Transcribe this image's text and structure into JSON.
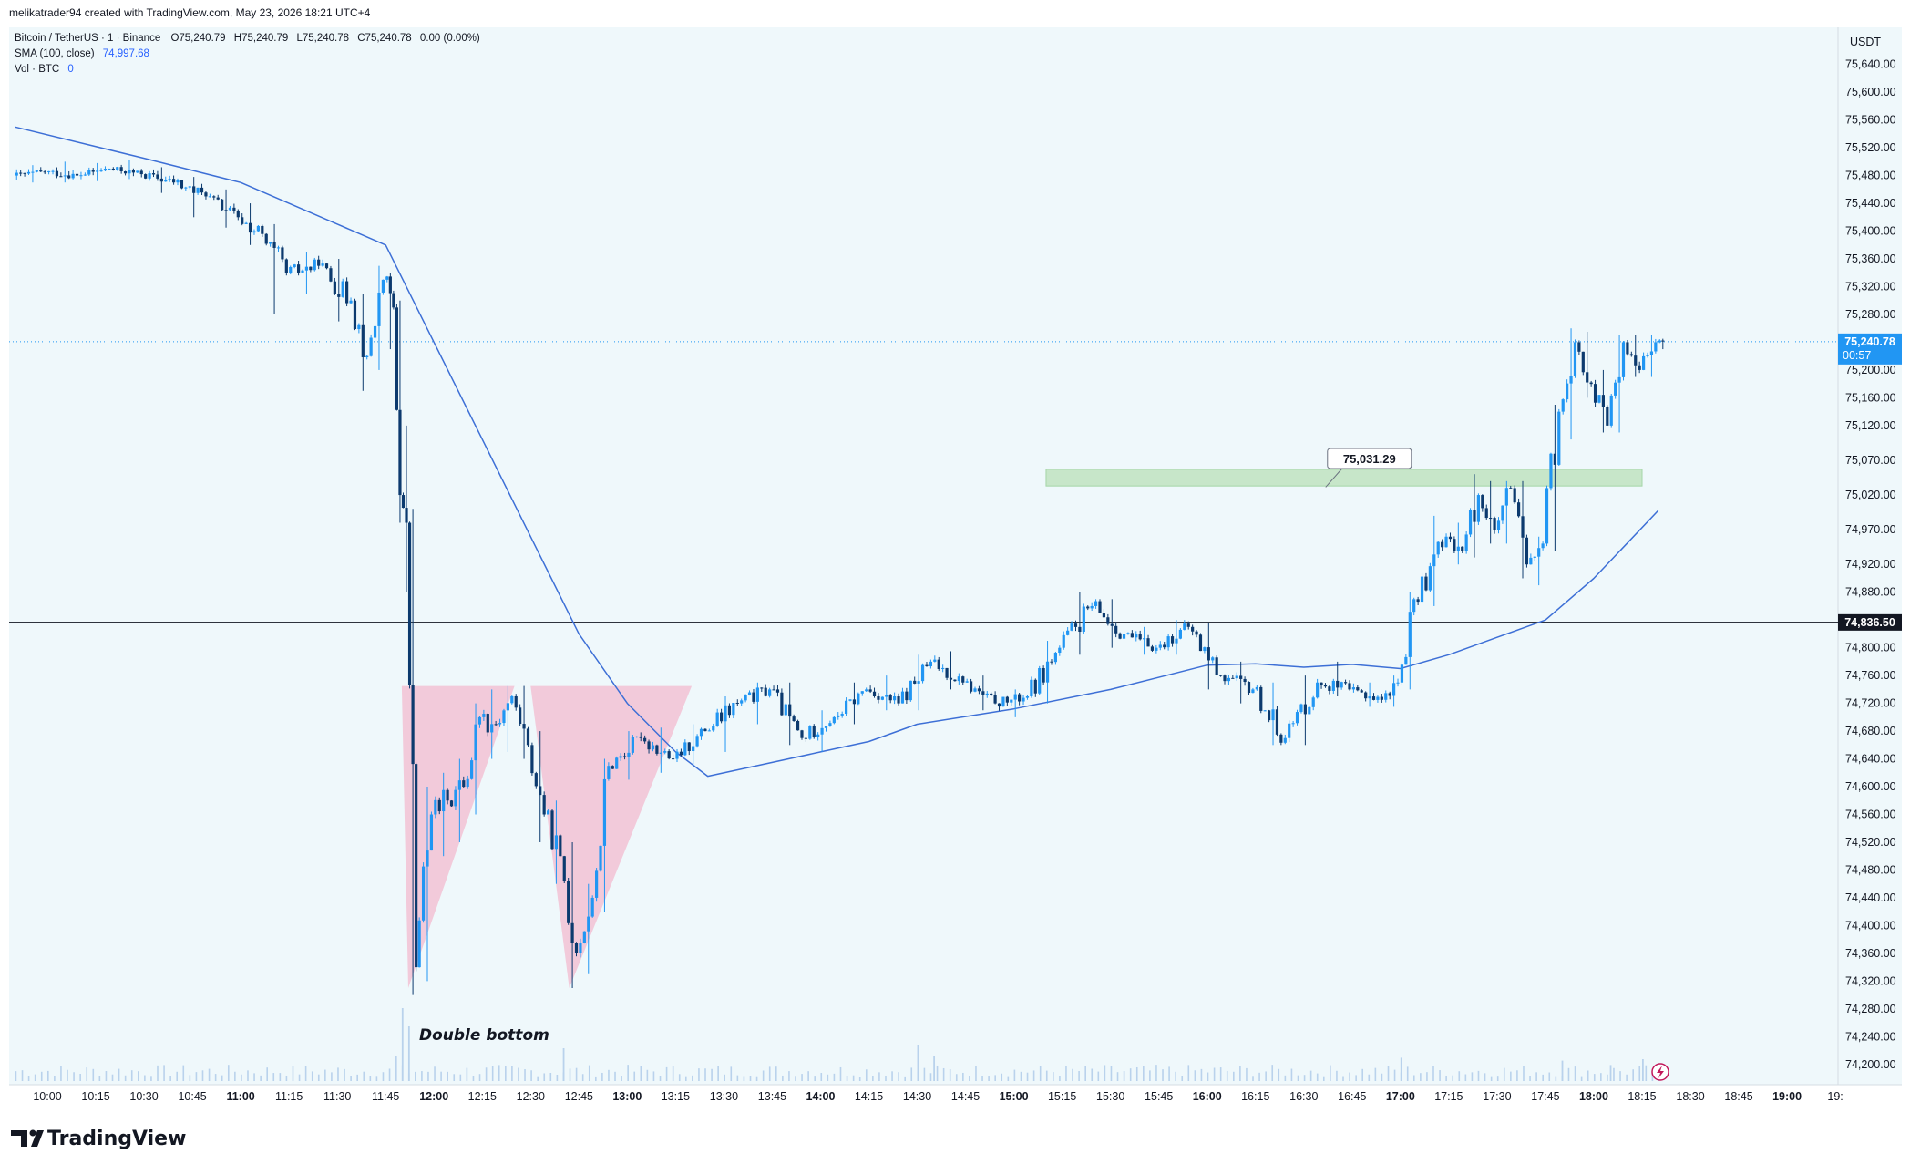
{
  "header": {
    "credit": "melikatrader94 created with TradingView.com, May 23, 2026 18:21 UTC+4"
  },
  "legend": {
    "symbol": "Bitcoin / TetherUS · 1 · Binance",
    "ohlc": {
      "o_label": "O",
      "o": "75,240.79",
      "h_label": "H",
      "h": "75,240.79",
      "l_label": "L",
      "l": "75,240.78",
      "c_label": "C",
      "c": "75,240.78",
      "change": "0.00 (0.00%)"
    },
    "sma": {
      "label": "SMA (100, close)",
      "value": "74,997.68"
    },
    "vol": {
      "label": "Vol · BTC",
      "value": "0"
    }
  },
  "price_axis": {
    "currency": "USDT",
    "labels": [
      "75,640.00",
      "75,600.00",
      "75,560.00",
      "75,520.00",
      "75,480.00",
      "75,440.00",
      "75,400.00",
      "75,360.00",
      "75,320.00",
      "75,280.00",
      "75,200.00",
      "75,160.00",
      "75,120.00",
      "75,070.00",
      "75,020.00",
      "74,970.00",
      "74,920.00",
      "74,880.00",
      "74,800.00",
      "74,760.00",
      "74,720.00",
      "74,680.00",
      "74,640.00",
      "74,600.00",
      "74,560.00",
      "74,520.00",
      "74,480.00",
      "74,440.00",
      "74,400.00",
      "74,360.00",
      "74,320.00",
      "74,280.00",
      "74,240.00",
      "74,200.00"
    ],
    "current_price_tag": {
      "price": "75,240.78",
      "countdown": "00:57",
      "color": "#2196f3"
    },
    "line_tag": {
      "price": "74,836.50",
      "color": "#131722"
    }
  },
  "time_axis": {
    "labels": [
      "10:00",
      "10:15",
      "10:30",
      "10:45",
      "11:00",
      "11:15",
      "11:30",
      "11:45",
      "12:00",
      "12:15",
      "12:30",
      "12:45",
      "13:00",
      "13:15",
      "13:30",
      "13:45",
      "14:00",
      "14:15",
      "14:30",
      "14:45",
      "15:00",
      "15:15",
      "15:30",
      "15:45",
      "16:00",
      "16:15",
      "16:30",
      "16:45",
      "17:00",
      "17:15",
      "17:30",
      "17:45",
      "18:00",
      "18:15",
      "18:30",
      "18:45",
      "19:00",
      "19:"
    ],
    "bold_labels": [
      "11:00",
      "12:00",
      "13:00",
      "14:00",
      "15:00",
      "16:00",
      "17:00",
      "18:00",
      "19:00"
    ]
  },
  "annotations": {
    "double_bottom": "Double bottom",
    "callout_price": "75,031.29"
  },
  "brand": {
    "name": "TradingView"
  },
  "colors": {
    "background": "#eff8fb",
    "up": "#2196f3",
    "down": "#0c3a6e",
    "sma_line": "#3d6fd6",
    "zone": "#bfe3c0",
    "triangle": "#f3b6cc",
    "volume": "#b9d2ec"
  },
  "chart_data": {
    "type": "candlestick",
    "symbol": "Bitcoin / TetherUS",
    "interval": "1",
    "ylim": [
      74180,
      75680
    ],
    "x_range": [
      "09:50",
      "19:05"
    ],
    "candles": [
      {
        "t": "09:50",
        "o": 75480,
        "h": 75495,
        "l": 75470,
        "c": 75485
      },
      {
        "t": "10:00",
        "o": 75485,
        "h": 75500,
        "l": 75470,
        "c": 75480
      },
      {
        "t": "10:10",
        "o": 75480,
        "h": 75498,
        "l": 75472,
        "c": 75490
      },
      {
        "t": "10:20",
        "o": 75490,
        "h": 75502,
        "l": 75475,
        "c": 75482
      },
      {
        "t": "10:30",
        "o": 75482,
        "h": 75492,
        "l": 75455,
        "c": 75470
      },
      {
        "t": "10:40",
        "o": 75470,
        "h": 75478,
        "l": 75420,
        "c": 75450
      },
      {
        "t": "10:50",
        "o": 75450,
        "h": 75460,
        "l": 75405,
        "c": 75420
      },
      {
        "t": "11:00",
        "o": 75420,
        "h": 75440,
        "l": 75380,
        "c": 75400
      },
      {
        "t": "11:05",
        "o": 75400,
        "h": 75410,
        "l": 75280,
        "c": 75340
      },
      {
        "t": "11:15",
        "o": 75340,
        "h": 75370,
        "l": 75310,
        "c": 75350
      },
      {
        "t": "11:25",
        "o": 75350,
        "h": 75360,
        "l": 75270,
        "c": 75300
      },
      {
        "t": "11:35",
        "o": 75300,
        "h": 75310,
        "l": 75170,
        "c": 75220
      },
      {
        "t": "11:40",
        "o": 75220,
        "h": 75350,
        "l": 75200,
        "c": 75330
      },
      {
        "t": "11:45",
        "o": 75330,
        "h": 75340,
        "l": 75230,
        "c": 75290
      },
      {
        "t": "11:48",
        "o": 75290,
        "h": 75300,
        "l": 74980,
        "c": 75020
      },
      {
        "t": "11:50",
        "o": 75020,
        "h": 75120,
        "l": 74880,
        "c": 74980
      },
      {
        "t": "11:52",
        "o": 74980,
        "h": 75000,
        "l": 74300,
        "c": 74340
      },
      {
        "t": "11:55",
        "o": 74340,
        "h": 74600,
        "l": 74320,
        "c": 74560
      },
      {
        "t": "12:00",
        "o": 74560,
        "h": 74620,
        "l": 74500,
        "c": 74580
      },
      {
        "t": "12:05",
        "o": 74580,
        "h": 74640,
        "l": 74520,
        "c": 74600
      },
      {
        "t": "12:10",
        "o": 74600,
        "h": 74720,
        "l": 74560,
        "c": 74700
      },
      {
        "t": "12:15",
        "o": 74700,
        "h": 74740,
        "l": 74640,
        "c": 74690
      },
      {
        "t": "12:20",
        "o": 74690,
        "h": 74745,
        "l": 74650,
        "c": 74730
      },
      {
        "t": "12:25",
        "o": 74730,
        "h": 74745,
        "l": 74640,
        "c": 74660
      },
      {
        "t": "12:30",
        "o": 74660,
        "h": 74680,
        "l": 74520,
        "c": 74560
      },
      {
        "t": "12:35",
        "o": 74560,
        "h": 74580,
        "l": 74460,
        "c": 74500
      },
      {
        "t": "12:40",
        "o": 74500,
        "h": 74520,
        "l": 74310,
        "c": 74360
      },
      {
        "t": "12:45",
        "o": 74360,
        "h": 74460,
        "l": 74330,
        "c": 74440
      },
      {
        "t": "12:50",
        "o": 74440,
        "h": 74640,
        "l": 74420,
        "c": 74630
      },
      {
        "t": "12:55",
        "o": 74630,
        "h": 74680,
        "l": 74610,
        "c": 74670
      },
      {
        "t": "13:05",
        "o": 74670,
        "h": 74685,
        "l": 74620,
        "c": 74640
      },
      {
        "t": "13:15",
        "o": 74640,
        "h": 74690,
        "l": 74630,
        "c": 74680
      },
      {
        "t": "13:25",
        "o": 74680,
        "h": 74730,
        "l": 74650,
        "c": 74720
      },
      {
        "t": "13:35",
        "o": 74720,
        "h": 74750,
        "l": 74690,
        "c": 74740
      },
      {
        "t": "13:45",
        "o": 74740,
        "h": 74750,
        "l": 74660,
        "c": 74670
      },
      {
        "t": "13:55",
        "o": 74670,
        "h": 74710,
        "l": 74650,
        "c": 74700
      },
      {
        "t": "14:05",
        "o": 74700,
        "h": 74750,
        "l": 74690,
        "c": 74740
      },
      {
        "t": "14:15",
        "o": 74740,
        "h": 74760,
        "l": 74710,
        "c": 74720
      },
      {
        "t": "14:25",
        "o": 74720,
        "h": 74790,
        "l": 74710,
        "c": 74780
      },
      {
        "t": "14:35",
        "o": 74780,
        "h": 74795,
        "l": 74740,
        "c": 74750
      },
      {
        "t": "14:45",
        "o": 74750,
        "h": 74760,
        "l": 74710,
        "c": 74720
      },
      {
        "t": "14:55",
        "o": 74720,
        "h": 74740,
        "l": 74700,
        "c": 74730
      },
      {
        "t": "15:05",
        "o": 74730,
        "h": 74810,
        "l": 74720,
        "c": 74800
      },
      {
        "t": "15:15",
        "o": 74800,
        "h": 74880,
        "l": 74790,
        "c": 74860
      },
      {
        "t": "15:25",
        "o": 74860,
        "h": 74870,
        "l": 74800,
        "c": 74820
      },
      {
        "t": "15:35",
        "o": 74820,
        "h": 74830,
        "l": 74790,
        "c": 74800
      },
      {
        "t": "15:45",
        "o": 74800,
        "h": 74840,
        "l": 74790,
        "c": 74830
      },
      {
        "t": "15:55",
        "o": 74830,
        "h": 74835,
        "l": 74740,
        "c": 74760
      },
      {
        "t": "16:05",
        "o": 74760,
        "h": 74780,
        "l": 74720,
        "c": 74740
      },
      {
        "t": "16:15",
        "o": 74740,
        "h": 74750,
        "l": 74660,
        "c": 74670
      },
      {
        "t": "16:25",
        "o": 74670,
        "h": 74760,
        "l": 74660,
        "c": 74750
      },
      {
        "t": "16:35",
        "o": 74750,
        "h": 74780,
        "l": 74730,
        "c": 74740
      },
      {
        "t": "16:45",
        "o": 74740,
        "h": 74750,
        "l": 74715,
        "c": 74725
      },
      {
        "t": "16:55",
        "o": 74725,
        "h": 74760,
        "l": 74715,
        "c": 74750
      },
      {
        "t": "17:00",
        "o": 74750,
        "h": 74880,
        "l": 74740,
        "c": 74870
      },
      {
        "t": "17:05",
        "o": 74870,
        "h": 74990,
        "l": 74860,
        "c": 74960
      },
      {
        "t": "17:15",
        "o": 74960,
        "h": 74980,
        "l": 74920,
        "c": 74940
      },
      {
        "t": "17:20",
        "o": 74940,
        "h": 75050,
        "l": 74930,
        "c": 75020
      },
      {
        "t": "17:25",
        "o": 75020,
        "h": 75040,
        "l": 74950,
        "c": 74970
      },
      {
        "t": "17:30",
        "o": 74970,
        "h": 75040,
        "l": 74950,
        "c": 75030
      },
      {
        "t": "17:35",
        "o": 75030,
        "h": 75040,
        "l": 74900,
        "c": 74920
      },
      {
        "t": "17:40",
        "o": 74920,
        "h": 74960,
        "l": 74890,
        "c": 74950
      },
      {
        "t": "17:45",
        "o": 74950,
        "h": 75150,
        "l": 74940,
        "c": 75140
      },
      {
        "t": "17:50",
        "o": 75140,
        "h": 75260,
        "l": 75100,
        "c": 75240
      },
      {
        "t": "17:55",
        "o": 75240,
        "h": 75255,
        "l": 75160,
        "c": 75180
      },
      {
        "t": "18:00",
        "o": 75180,
        "h": 75200,
        "l": 75110,
        "c": 75120
      },
      {
        "t": "18:05",
        "o": 75120,
        "h": 75250,
        "l": 75110,
        "c": 75240
      },
      {
        "t": "18:10",
        "o": 75240,
        "h": 75250,
        "l": 75190,
        "c": 75200
      },
      {
        "t": "18:15",
        "o": 75200,
        "h": 75250,
        "l": 75190,
        "c": 75240
      },
      {
        "t": "18:20",
        "o": 75240,
        "h": 75245,
        "l": 75230,
        "c": 75241
      }
    ],
    "sma_100": [
      {
        "t": "09:50",
        "v": 75550
      },
      {
        "t": "10:30",
        "v": 75505
      },
      {
        "t": "11:00",
        "v": 75470
      },
      {
        "t": "11:30",
        "v": 75410
      },
      {
        "t": "11:45",
        "v": 75380
      },
      {
        "t": "12:00",
        "v": 75240
      },
      {
        "t": "12:15",
        "v": 75100
      },
      {
        "t": "12:30",
        "v": 74960
      },
      {
        "t": "12:45",
        "v": 74820
      },
      {
        "t": "13:00",
        "v": 74720
      },
      {
        "t": "13:15",
        "v": 74650
      },
      {
        "t": "13:25",
        "v": 74615
      },
      {
        "t": "13:45",
        "v": 74635
      },
      {
        "t": "14:00",
        "v": 74650
      },
      {
        "t": "14:15",
        "v": 74665
      },
      {
        "t": "14:30",
        "v": 74690
      },
      {
        "t": "15:00",
        "v": 74712
      },
      {
        "t": "15:30",
        "v": 74740
      },
      {
        "t": "16:00",
        "v": 74775
      },
      {
        "t": "16:15",
        "v": 74777
      },
      {
        "t": "16:30",
        "v": 74772
      },
      {
        "t": "16:45",
        "v": 74776
      },
      {
        "t": "17:00",
        "v": 74770
      },
      {
        "t": "17:15",
        "v": 74790
      },
      {
        "t": "17:30",
        "v": 74815
      },
      {
        "t": "17:45",
        "v": 74840
      },
      {
        "t": "18:00",
        "v": 74900
      },
      {
        "t": "18:20",
        "v": 74997.68
      }
    ],
    "horizontal_line": 74836.5,
    "last_price": 75240.78,
    "zone": {
      "from": "15:10",
      "to": "18:15",
      "low": 75033,
      "high": 75057
    },
    "callout": {
      "price": 75031.29,
      "at": "16:30"
    },
    "pattern_triangles": [
      {
        "points": [
          [
            "11:50",
            74745
          ],
          [
            "12:25",
            74745
          ],
          [
            "11:52",
            74310
          ]
        ]
      },
      {
        "points": [
          [
            "12:30",
            74745
          ],
          [
            "13:20",
            74745
          ],
          [
            "12:42",
            74310
          ]
        ]
      }
    ],
    "volume": [
      {
        "t": "11:50",
        "v": 1.0
      },
      {
        "t": "11:52",
        "v": 0.75
      },
      {
        "t": "11:48",
        "v": 0.35
      },
      {
        "t": "12:40",
        "v": 0.45
      },
      {
        "t": "14:30",
        "v": 0.5
      },
      {
        "t": "14:35",
        "v": 0.35
      },
      {
        "t": "17:00",
        "v": 0.32
      },
      {
        "t": "17:50",
        "v": 0.28
      },
      {
        "t": "18:05",
        "v": 0.22
      },
      {
        "t": "18:15",
        "v": 0.3
      }
    ]
  }
}
